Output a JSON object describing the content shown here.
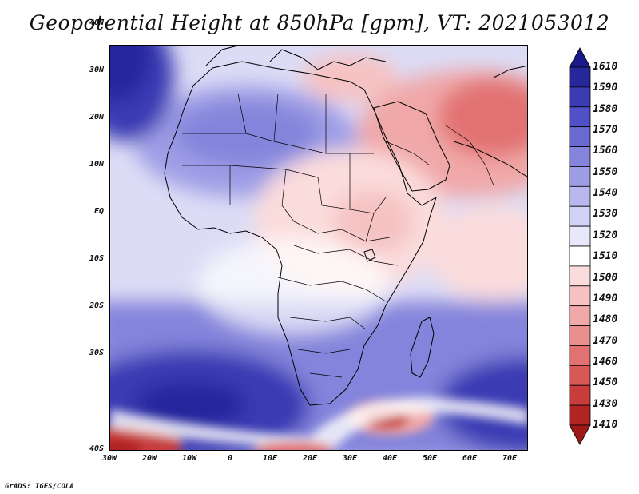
{
  "title": "Geopotential Height at 850hPa [gpm], VT: 2021053012",
  "footer": "GrADS: IGES/COLA",
  "lat_labels": [
    "40N",
    "30N",
    "20N",
    "10N",
    "EQ",
    "10S",
    "20S",
    "30S",
    "40S"
  ],
  "lon_labels": [
    "30W",
    "20W",
    "10W",
    "0",
    "10E",
    "20E",
    "30E",
    "40E",
    "50E",
    "60E",
    "70E"
  ],
  "colorbar": {
    "levels": [
      "1610",
      "1590",
      "1580",
      "1570",
      "1560",
      "1550",
      "1540",
      "1530",
      "1520",
      "1510",
      "1500",
      "1490",
      "1480",
      "1470",
      "1460",
      "1450",
      "1430",
      "1410"
    ],
    "colors": [
      "#27279c",
      "#3b3bb4",
      "#5050c8",
      "#6a6ad2",
      "#8484dc",
      "#9e9ee6",
      "#b8b8ee",
      "#d2d2f6",
      "#e8e8fa",
      "#ffffff",
      "#fbdcdc",
      "#f6c2c2",
      "#f0a8a8",
      "#ea8e8e",
      "#e27272",
      "#d85858",
      "#c83c3c",
      "#b02424"
    ],
    "top_arrow_color": "#1a1a8c",
    "bottom_arrow_color": "#a01818"
  },
  "field_colors": {
    "deep_blue": "#3535ab",
    "blue": "#6161cc",
    "mid_blue": "#8c8cdd",
    "light_blue": "#c9c9f3",
    "pale_blue": "#e1e1f8",
    "white": "#ffffff",
    "pale_red": "#f8dddd",
    "light_red": "#f0b4b4",
    "red": "#e27272",
    "deep_red": "#b83232"
  }
}
